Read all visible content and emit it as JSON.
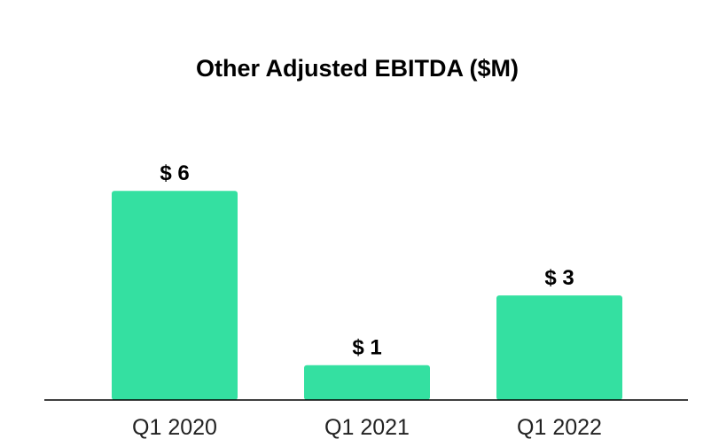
{
  "chart_data": {
    "type": "bar",
    "title": "Other Adjusted EBITDA ($M)",
    "categories": [
      "Q1 2020",
      "Q1 2021",
      "Q1 2022"
    ],
    "values": [
      6,
      1,
      3
    ],
    "data_labels": [
      "$ 6",
      "$ 1",
      "$ 3"
    ],
    "xlabel": "",
    "ylabel": "",
    "ylim": [
      0,
      6.5
    ],
    "grid": false,
    "legend": "none",
    "bar_color": "#34e0a1",
    "axis_color": "#000000"
  }
}
